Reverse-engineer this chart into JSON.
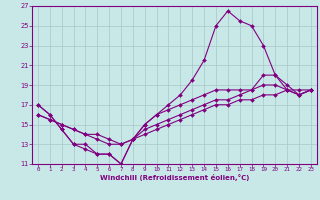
{
  "xlabel": "Windchill (Refroidissement éolien,°C)",
  "bg_color": "#c8e8e8",
  "line_color": "#800080",
  "grid_color": "#a8c8c8",
  "xlim": [
    -0.5,
    23.5
  ],
  "ylim": [
    11,
    27
  ],
  "xticks": [
    0,
    1,
    2,
    3,
    4,
    5,
    6,
    7,
    8,
    9,
    10,
    11,
    12,
    13,
    14,
    15,
    16,
    17,
    18,
    19,
    20,
    21,
    22,
    23
  ],
  "yticks": [
    11,
    13,
    15,
    17,
    19,
    21,
    23,
    25,
    27
  ],
  "line1_x": [
    0,
    1,
    2,
    3,
    4,
    5,
    6,
    7,
    8,
    9,
    10,
    11,
    12,
    13,
    14,
    15,
    16,
    17,
    18,
    19,
    20,
    21,
    22,
    23
  ],
  "line1_y": [
    17,
    16,
    14.5,
    13,
    13,
    12,
    12,
    11,
    13.5,
    15,
    16,
    17,
    18,
    19.5,
    21.5,
    25,
    26.5,
    25.5,
    25,
    23,
    20,
    19,
    18,
    18.5
  ],
  "line2_x": [
    0,
    1,
    2,
    3,
    4,
    5,
    6,
    7,
    8,
    9,
    10,
    11,
    12,
    13,
    14,
    15,
    16,
    17,
    18,
    19,
    20,
    21,
    22,
    23
  ],
  "line2_y": [
    17,
    16,
    14.5,
    13,
    12.5,
    12,
    12,
    11,
    13.5,
    15,
    16,
    16.5,
    17,
    17.5,
    18,
    18.5,
    18.5,
    18.5,
    18.5,
    20,
    20,
    18.5,
    18,
    18.5
  ],
  "line3_x": [
    0,
    1,
    2,
    3,
    4,
    5,
    6,
    7,
    8,
    9,
    10,
    11,
    12,
    13,
    14,
    15,
    16,
    17,
    18,
    19,
    20,
    21,
    22,
    23
  ],
  "line3_y": [
    16,
    15.5,
    15,
    14.5,
    14,
    14,
    13.5,
    13,
    13.5,
    14,
    14.5,
    15,
    15.5,
    16,
    16.5,
    17,
    17,
    17.5,
    17.5,
    18,
    18,
    18.5,
    18.5,
    18.5
  ],
  "line4_x": [
    0,
    1,
    2,
    3,
    4,
    5,
    6,
    7,
    8,
    9,
    10,
    11,
    12,
    13,
    14,
    15,
    16,
    17,
    18,
    19,
    20,
    21,
    22,
    23
  ],
  "line4_y": [
    16,
    15.5,
    15,
    14.5,
    14,
    13.5,
    13,
    13,
    13.5,
    14.5,
    15,
    15.5,
    16,
    16.5,
    17,
    17.5,
    17.5,
    18,
    18.5,
    19,
    19,
    18.5,
    18,
    18.5
  ]
}
